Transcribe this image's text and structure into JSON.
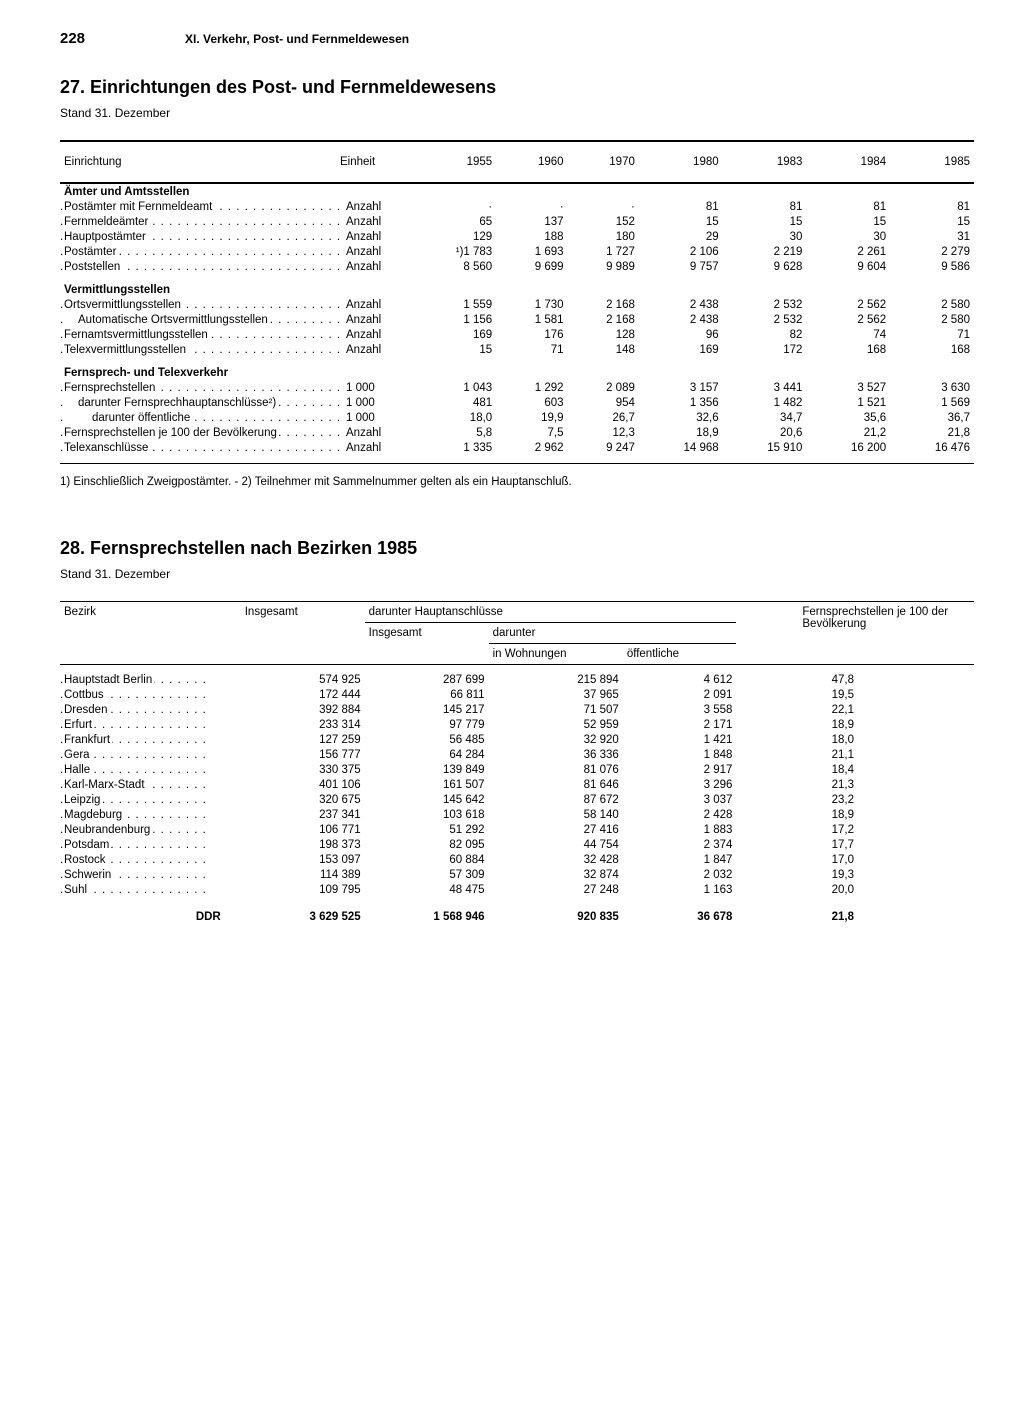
{
  "page_number": "228",
  "section_header": "XI. Verkehr, Post- und Fernmeldewesen",
  "table27": {
    "title": "27. Einrichtungen des Post- und Fernmeldewesens",
    "subtitle": "Stand 31. Dezember",
    "col_label": "Einrichtung",
    "col_unit": "Einheit",
    "years": [
      "1955",
      "1960",
      "1970",
      "1980",
      "1983",
      "1984",
      "1985"
    ],
    "groups": [
      {
        "heading": "Ämter und Amtsstellen",
        "rows": [
          {
            "label": "Postämter mit Fernmeldeamt",
            "unit": "Anzahl",
            "v": [
              "·",
              "·",
              "·",
              "81",
              "81",
              "81",
              "81"
            ]
          },
          {
            "label": "Fernmeldeämter",
            "unit": "Anzahl",
            "v": [
              "65",
              "137",
              "152",
              "15",
              "15",
              "15",
              "15"
            ]
          },
          {
            "label": "Hauptpostämter",
            "unit": "Anzahl",
            "v": [
              "129",
              "188",
              "180",
              "29",
              "30",
              "30",
              "31"
            ]
          },
          {
            "label": "Postämter",
            "unit": "Anzahl",
            "v": [
              "¹)1 783",
              "1 693",
              "1 727",
              "2 106",
              "2 219",
              "2 261",
              "2 279"
            ]
          },
          {
            "label": "Poststellen",
            "unit": "Anzahl",
            "v": [
              "8 560",
              "9 699",
              "9 989",
              "9 757",
              "9 628",
              "9 604",
              "9 586"
            ]
          }
        ]
      },
      {
        "heading": "Vermittlungsstellen",
        "rows": [
          {
            "label": "Ortsvermittlungsstellen",
            "unit": "Anzahl",
            "v": [
              "1 559",
              "1 730",
              "2 168",
              "2 438",
              "2 532",
              "2 562",
              "2 580"
            ]
          },
          {
            "label": "Automatische Ortsvermittlungsstellen",
            "indent": 1,
            "unit": "Anzahl",
            "v": [
              "1 156",
              "1 581",
              "2 168",
              "2 438",
              "2 532",
              "2 562",
              "2 580"
            ]
          },
          {
            "label": "Fernamtsvermittlungsstellen",
            "unit": "Anzahl",
            "v": [
              "169",
              "176",
              "128",
              "96",
              "82",
              "74",
              "71"
            ]
          },
          {
            "label": "Telexvermittlungsstellen",
            "unit": "Anzahl",
            "v": [
              "15",
              "71",
              "148",
              "169",
              "172",
              "168",
              "168"
            ]
          }
        ]
      },
      {
        "heading": "Fernsprech- und Telexverkehr",
        "rows": [
          {
            "label": "Fernsprechstellen",
            "unit": "1 000",
            "v": [
              "1 043",
              "1 292",
              "2 089",
              "3 157",
              "3 441",
              "3 527",
              "3 630"
            ]
          },
          {
            "label": "darunter Fernsprechhauptanschlüsse²)",
            "indent": 1,
            "unit": "1 000",
            "v": [
              "481",
              "603",
              "954",
              "1 356",
              "1 482",
              "1 521",
              "1 569"
            ]
          },
          {
            "label": "darunter öffentliche",
            "indent": 2,
            "unit": "1 000",
            "v": [
              "18,0",
              "19,9",
              "26,7",
              "32,6",
              "34,7",
              "35,6",
              "36,7"
            ]
          },
          {
            "label": "Fernsprechstellen je 100 der Bevölkerung",
            "unit": "Anzahl",
            "v": [
              "5,8",
              "7,5",
              "12,3",
              "18,9",
              "20,6",
              "21,2",
              "21,8"
            ]
          },
          {
            "label": "Telexanschlüsse",
            "unit": "Anzahl",
            "v": [
              "1 335",
              "2 962",
              "9 247",
              "14 968",
              "15 910",
              "16 200",
              "16 476"
            ]
          }
        ]
      }
    ],
    "footnote": "1) Einschließlich Zweigpostämter. - 2) Teilnehmer mit Sammelnummer gelten als ein Hauptanschluß."
  },
  "table28": {
    "title": "28. Fernsprechstellen nach Bezirken 1985",
    "subtitle": "Stand 31. Dezember",
    "headers": {
      "bezirk": "Bezirk",
      "insgesamt": "Insgesamt",
      "darunter_haupt": "darunter Hauptanschlüsse",
      "sub_insgesamt": "Insgesamt",
      "sub_darunter": "darunter",
      "in_wohnungen": "in Wohnungen",
      "oeffentliche": "öffentliche",
      "per100": "Fernsprechstellen je 100 der Bevölkerung"
    },
    "rows": [
      {
        "label": "Hauptstadt Berlin",
        "v": [
          "574 925",
          "287 699",
          "215 894",
          "4 612",
          "47,8"
        ]
      },
      {
        "label": "Cottbus",
        "v": [
          "172 444",
          "66 811",
          "37 965",
          "2 091",
          "19,5"
        ]
      },
      {
        "label": "Dresden",
        "v": [
          "392 884",
          "145 217",
          "71 507",
          "3 558",
          "22,1"
        ]
      },
      {
        "label": "Erfurt",
        "v": [
          "233 314",
          "97 779",
          "52 959",
          "2 171",
          "18,9"
        ]
      },
      {
        "label": "Frankfurt",
        "v": [
          "127 259",
          "56 485",
          "32 920",
          "1 421",
          "18,0"
        ]
      },
      {
        "label": "Gera",
        "v": [
          "156 777",
          "64 284",
          "36 336",
          "1 848",
          "21,1"
        ]
      },
      {
        "label": "Halle",
        "v": [
          "330 375",
          "139 849",
          "81 076",
          "2 917",
          "18,4"
        ]
      },
      {
        "label": "Karl-Marx-Stadt",
        "v": [
          "401 106",
          "161 507",
          "81 646",
          "3 296",
          "21,3"
        ]
      },
      {
        "label": "Leipzig",
        "v": [
          "320 675",
          "145 642",
          "87 672",
          "3 037",
          "23,2"
        ]
      },
      {
        "label": "Magdeburg",
        "v": [
          "237 341",
          "103 618",
          "58 140",
          "2 428",
          "18,9"
        ]
      },
      {
        "label": "Neubrandenburg",
        "v": [
          "106 771",
          "51 292",
          "27 416",
          "1 883",
          "17,2"
        ]
      },
      {
        "label": "Potsdam",
        "v": [
          "198 373",
          "82 095",
          "44 754",
          "2 374",
          "17,7"
        ]
      },
      {
        "label": "Rostock",
        "v": [
          "153 097",
          "60 884",
          "32 428",
          "1 847",
          "17,0"
        ]
      },
      {
        "label": "Schwerin",
        "v": [
          "114 389",
          "57 309",
          "32 874",
          "2 032",
          "19,3"
        ]
      },
      {
        "label": "Suhl",
        "v": [
          "109 795",
          "48 475",
          "27 248",
          "1 163",
          "20,0"
        ]
      }
    ],
    "total": {
      "label": "DDR",
      "v": [
        "3 629 525",
        "1 568 946",
        "920 835",
        "36 678",
        "21,8"
      ]
    }
  }
}
